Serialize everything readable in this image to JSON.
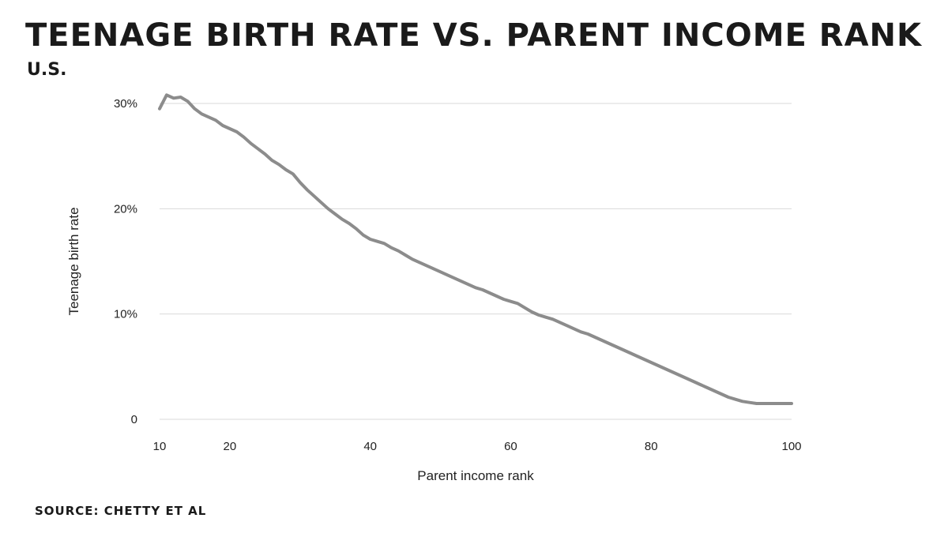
{
  "title": "TEENAGE BIRTH RATE VS. PARENT INCOME RANK",
  "subtitle": "U.S.",
  "source": "SOURCE: CHETTY ET AL",
  "colors": {
    "line": "#8c8c8c",
    "grid": "#d9d9d9",
    "text": "#1a1a1a"
  },
  "chart_data": {
    "type": "line",
    "title": "TEENAGE BIRTH RATE VS. PARENT INCOME RANK",
    "subtitle": "U.S.",
    "xlabel": "Parent income rank",
    "ylabel": "Teenage birth rate",
    "xlim": [
      10,
      100
    ],
    "ylim": [
      0,
      30
    ],
    "x_ticks": [
      10,
      20,
      40,
      60,
      80,
      100
    ],
    "x_tick_labels": [
      "10",
      "20",
      "40",
      "60",
      "80",
      "100"
    ],
    "y_ticks": [
      0,
      10,
      20,
      30
    ],
    "y_tick_labels": [
      "0",
      "10%",
      "20%",
      "30%"
    ],
    "grid": "horizontal",
    "series": [
      {
        "x": [
          10,
          11,
          12,
          13,
          14,
          15,
          16,
          17,
          18,
          19,
          20,
          21,
          22,
          23,
          24,
          25,
          26,
          27,
          28,
          29,
          30,
          31,
          32,
          33,
          34,
          35,
          36,
          37,
          38,
          39,
          40,
          41,
          42,
          43,
          44,
          45,
          46,
          47,
          48,
          49,
          50,
          51,
          52,
          53,
          54,
          55,
          56,
          57,
          58,
          59,
          60,
          61,
          62,
          63,
          64,
          65,
          66,
          67,
          68,
          69,
          70,
          71,
          72,
          73,
          74,
          75,
          76,
          77,
          78,
          79,
          80,
          81,
          82,
          83,
          84,
          85,
          86,
          87,
          88,
          89,
          90,
          91,
          92,
          93,
          94,
          95,
          96,
          97,
          98,
          99,
          100
        ],
        "y": [
          29.5,
          30.8,
          30.5,
          30.6,
          30.2,
          29.5,
          29.0,
          28.7,
          28.4,
          27.9,
          27.6,
          27.3,
          26.8,
          26.2,
          25.7,
          25.2,
          24.6,
          24.2,
          23.7,
          23.3,
          22.5,
          21.8,
          21.2,
          20.6,
          20.0,
          19.5,
          19.0,
          18.6,
          18.1,
          17.5,
          17.1,
          16.9,
          16.7,
          16.3,
          16.0,
          15.6,
          15.2,
          14.9,
          14.6,
          14.3,
          14.0,
          13.7,
          13.4,
          13.1,
          12.8,
          12.5,
          12.3,
          12.0,
          11.7,
          11.4,
          11.2,
          11.0,
          10.6,
          10.2,
          9.9,
          9.7,
          9.5,
          9.2,
          8.9,
          8.6,
          8.3,
          8.1,
          7.8,
          7.5,
          7.2,
          6.9,
          6.6,
          6.3,
          6.0,
          5.7,
          5.4,
          5.1,
          4.8,
          4.5,
          4.2,
          3.9,
          3.6,
          3.3,
          3.0,
          2.7,
          2.4,
          2.1,
          1.9,
          1.7,
          1.6,
          1.5,
          1.5,
          1.5,
          1.5,
          1.5,
          1.5
        ]
      }
    ]
  }
}
